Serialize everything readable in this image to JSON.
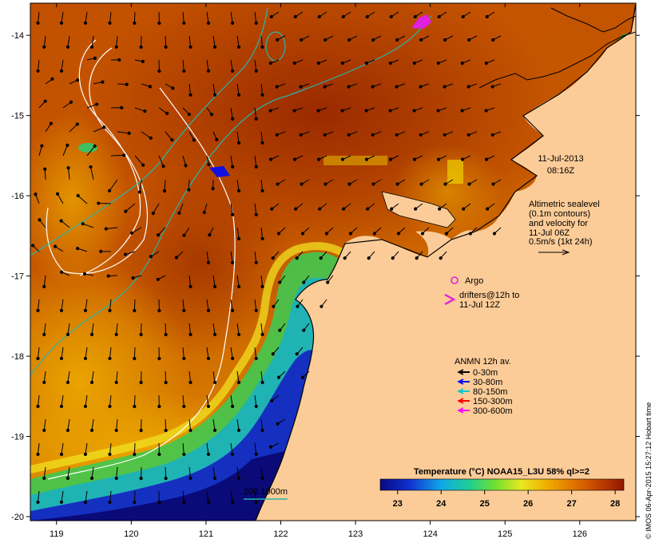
{
  "map": {
    "lon_ticks": [
      119,
      120,
      121,
      122,
      123,
      124,
      125,
      126
    ],
    "lat_ticks": [
      -14,
      -15,
      -16,
      -17,
      -18,
      -19,
      -20
    ],
    "lon_range": [
      118.65,
      126.75
    ],
    "lat_range": [
      -20.05,
      -13.6
    ]
  },
  "timestamp": {
    "date": "11-Jul-2013",
    "time": "08:16Z"
  },
  "altimetry": {
    "line1": "Altimetric sealevel",
    "line2": "(0.1m contours)",
    "line3": "and velocity for",
    "line4": "11-Jul 06Z",
    "line5": "0.5m/s (1kt 24h)"
  },
  "argo": {
    "label": "Argo",
    "color": "#e020e0"
  },
  "drifters": {
    "line1": "drifters@12h to",
    "line2": "11-Jul 12Z",
    "color": "#e020e0"
  },
  "anmn": {
    "title": "ANMN 12h av.",
    "items": [
      {
        "label": "0-30m",
        "color": "#000000"
      },
      {
        "label": "30-80m",
        "color": "#0000ff"
      },
      {
        "label": "80-150m",
        "color": "#00c8c8"
      },
      {
        "label": "150-300m",
        "color": "#ff0000"
      },
      {
        "label": "300-600m",
        "color": "#ff00ff"
      }
    ]
  },
  "isobath": {
    "label": "200  1000m",
    "color": "#2ab5a8"
  },
  "colorbar": {
    "title": "Temperature (°C) NOAA15_L3U 58% ql>=2",
    "ticks": [
      "23",
      "24",
      "25",
      "26",
      "27",
      "28"
    ],
    "min": 22.6,
    "max": 28.2
  },
  "credit": "© IMOS 06-Apr-2015 15:27:12 Hobart time",
  "colors": {
    "land": "#fccc98",
    "warm": "#a83400",
    "mid": "#d86a00",
    "cool": "#e8a000",
    "green": "#30d060",
    "blue": "#1018c0",
    "deepblue": "#0a0a70",
    "contour": "#ffffff"
  }
}
